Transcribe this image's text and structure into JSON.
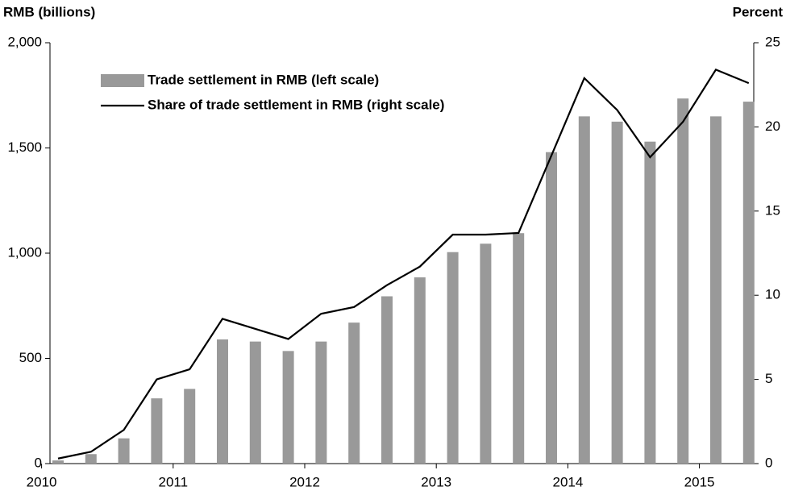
{
  "chart_data": {
    "type": "bar_line",
    "y_label": "RMB (billions)",
    "y2_label": "Percent",
    "categories": [
      "2010",
      null,
      null,
      null,
      "2011",
      null,
      null,
      null,
      "2012",
      null,
      null,
      null,
      "2013",
      null,
      null,
      null,
      "2014",
      null,
      null,
      null,
      "2015",
      null
    ],
    "series": [
      {
        "name": "Trade settlement in RMB (left scale)",
        "type": "bar",
        "color": "#999999",
        "values": [
          15,
          45,
          120,
          310,
          355,
          590,
          580,
          535,
          580,
          670,
          795,
          885,
          1005,
          1045,
          1095,
          1480,
          1650,
          1625,
          1530,
          1735,
          1650,
          1720
        ]
      },
      {
        "name": "Share of trade settlement in RMB (right scale)",
        "type": "line",
        "color": "#000000",
        "axis": "y2",
        "values": [
          0.3,
          0.7,
          2.0,
          5.0,
          5.6,
          8.6,
          8.0,
          7.4,
          8.9,
          9.3,
          10.6,
          11.7,
          13.6,
          13.6,
          13.7,
          18.3,
          22.9,
          21.0,
          18.2,
          20.3,
          23.4,
          22.6
        ]
      }
    ],
    "ylim": [
      0,
      2000
    ],
    "yticks": [
      0,
      500,
      {
        "value": 1000,
        "label": "1,000"
      },
      {
        "value": 1500,
        "label": "1,500"
      },
      {
        "value": 2000,
        "label": "2,000"
      }
    ],
    "y2lim": [
      0,
      25
    ],
    "y2ticks": [
      0,
      5,
      10,
      15,
      20,
      25
    ],
    "legend": "upper left"
  }
}
